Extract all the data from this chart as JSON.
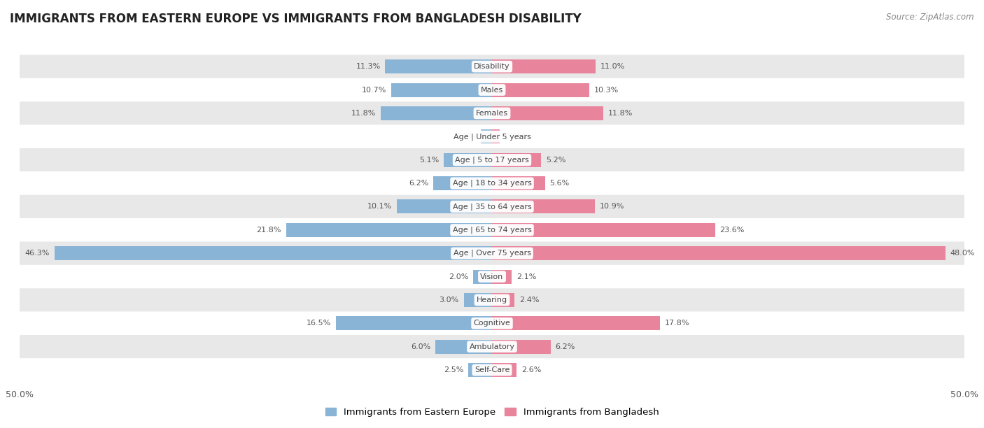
{
  "title": "IMMIGRANTS FROM EASTERN EUROPE VS IMMIGRANTS FROM BANGLADESH DISABILITY",
  "source": "Source: ZipAtlas.com",
  "categories": [
    "Disability",
    "Males",
    "Females",
    "Age | Under 5 years",
    "Age | 5 to 17 years",
    "Age | 18 to 34 years",
    "Age | 35 to 64 years",
    "Age | 65 to 74 years",
    "Age | Over 75 years",
    "Vision",
    "Hearing",
    "Cognitive",
    "Ambulatory",
    "Self-Care"
  ],
  "left_values": [
    11.3,
    10.7,
    11.8,
    1.2,
    5.1,
    6.2,
    10.1,
    21.8,
    46.3,
    2.0,
    3.0,
    16.5,
    6.0,
    2.5
  ],
  "right_values": [
    11.0,
    10.3,
    11.8,
    0.85,
    5.2,
    5.6,
    10.9,
    23.6,
    48.0,
    2.1,
    2.4,
    17.8,
    6.2,
    2.6
  ],
  "left_color": "#8ab4d6",
  "right_color": "#e8849c",
  "left_label": "Immigrants from Eastern Europe",
  "right_label": "Immigrants from Bangladesh",
  "max_val": 50.0,
  "bg_color": "#ffffff",
  "row_bg_light": "#ffffff",
  "row_bg_dark": "#e8e8e8",
  "title_fontsize": 12,
  "bar_height": 0.6
}
